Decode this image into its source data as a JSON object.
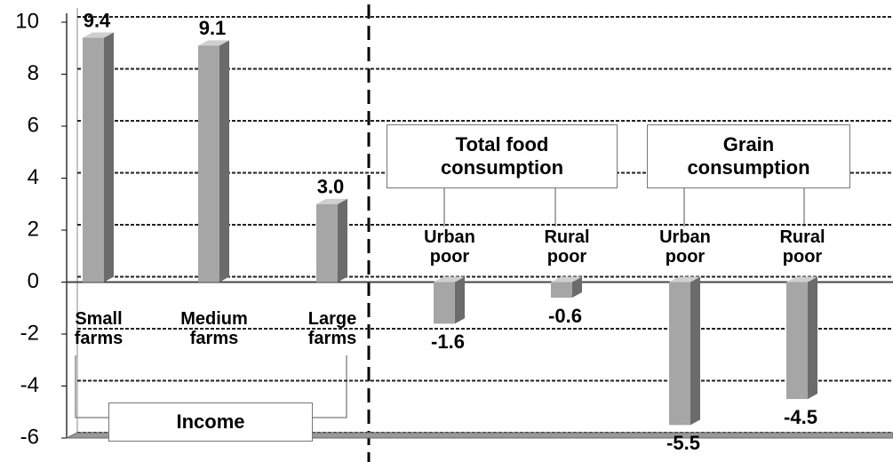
{
  "chart_data": {
    "type": "bar",
    "categories": [
      "Small farms",
      "Medium farms",
      "Large farms",
      "Urban poor",
      "Rural poor",
      "Urban poor",
      "Rural poor"
    ],
    "values": [
      9.4,
      9.1,
      3.0,
      -1.6,
      -0.6,
      -5.5,
      -4.5
    ],
    "value_labels": [
      "9.4",
      "9.1",
      "3.0",
      "-1.6",
      "-0.6",
      "-5.5",
      "-4.5"
    ],
    "color": "#a6a6a6",
    "annotations": [
      "Income",
      "Total food consumption",
      "Grain consumption"
    ],
    "ylim": [
      -6,
      10
    ],
    "yticks": [
      -6,
      -4,
      -2,
      0,
      2,
      4,
      6,
      8,
      10
    ],
    "grid": true
  }
}
